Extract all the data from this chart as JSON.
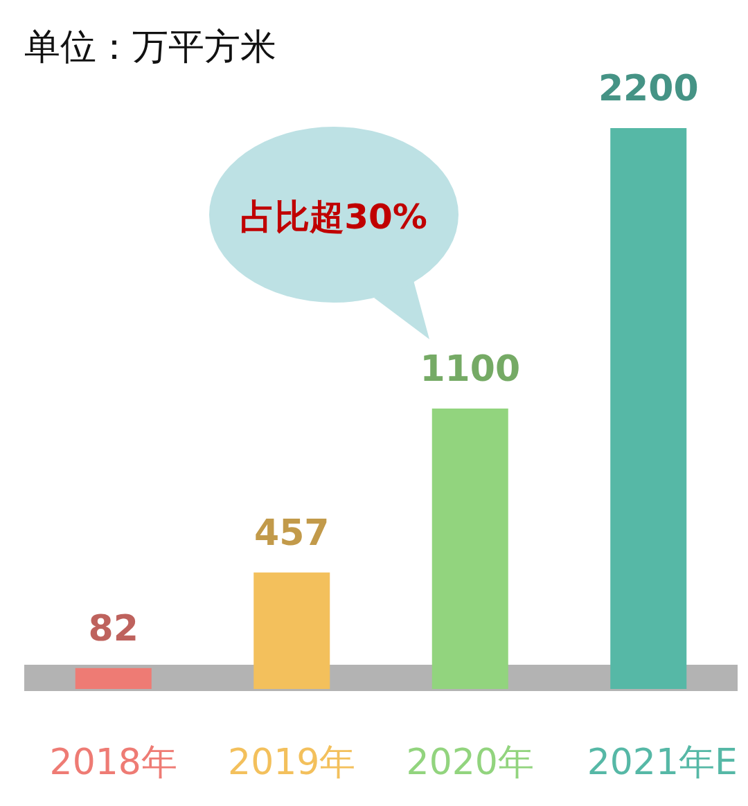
{
  "chart_data": {
    "type": "bar",
    "title": "单位：万平方米",
    "categories": [
      "2018年",
      "2019年",
      "2020年",
      "2021年E"
    ],
    "values": [
      82,
      457,
      1100,
      2200
    ],
    "colors": [
      "#ee7b74",
      "#f3c05c",
      "#92d47e",
      "#56b8a6"
    ],
    "data_labels": true,
    "annotations": [
      "占比超30%"
    ]
  }
}
